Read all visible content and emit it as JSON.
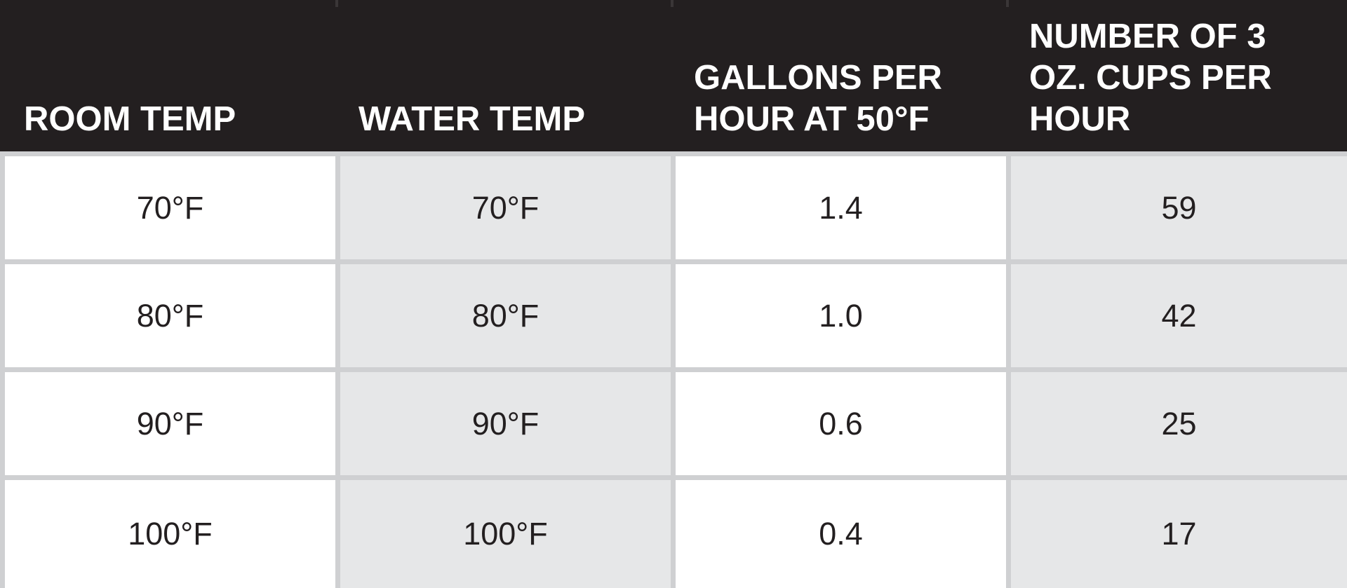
{
  "table": {
    "headers": [
      "ROOM TEMP",
      "WATER TEMP",
      "GALLONS PER HOUR AT 50°F",
      "NUMBER OF 3 OZ. CUPS PER HOUR"
    ],
    "rows": [
      [
        "70°F",
        "70°F",
        "1.4",
        "59"
      ],
      [
        "80°F",
        "80°F",
        "1.0",
        "42"
      ],
      [
        "90°F",
        "90°F",
        "0.6",
        "25"
      ],
      [
        "100°F",
        "100°F",
        "0.4",
        "17"
      ]
    ]
  },
  "colors": {
    "header_background": "#231f20",
    "header_text": "#ffffff",
    "cell_white": "#ffffff",
    "cell_grey": "#e6e7e8",
    "grid_lines": "#cfd0d2",
    "body_text": "#231f20"
  }
}
